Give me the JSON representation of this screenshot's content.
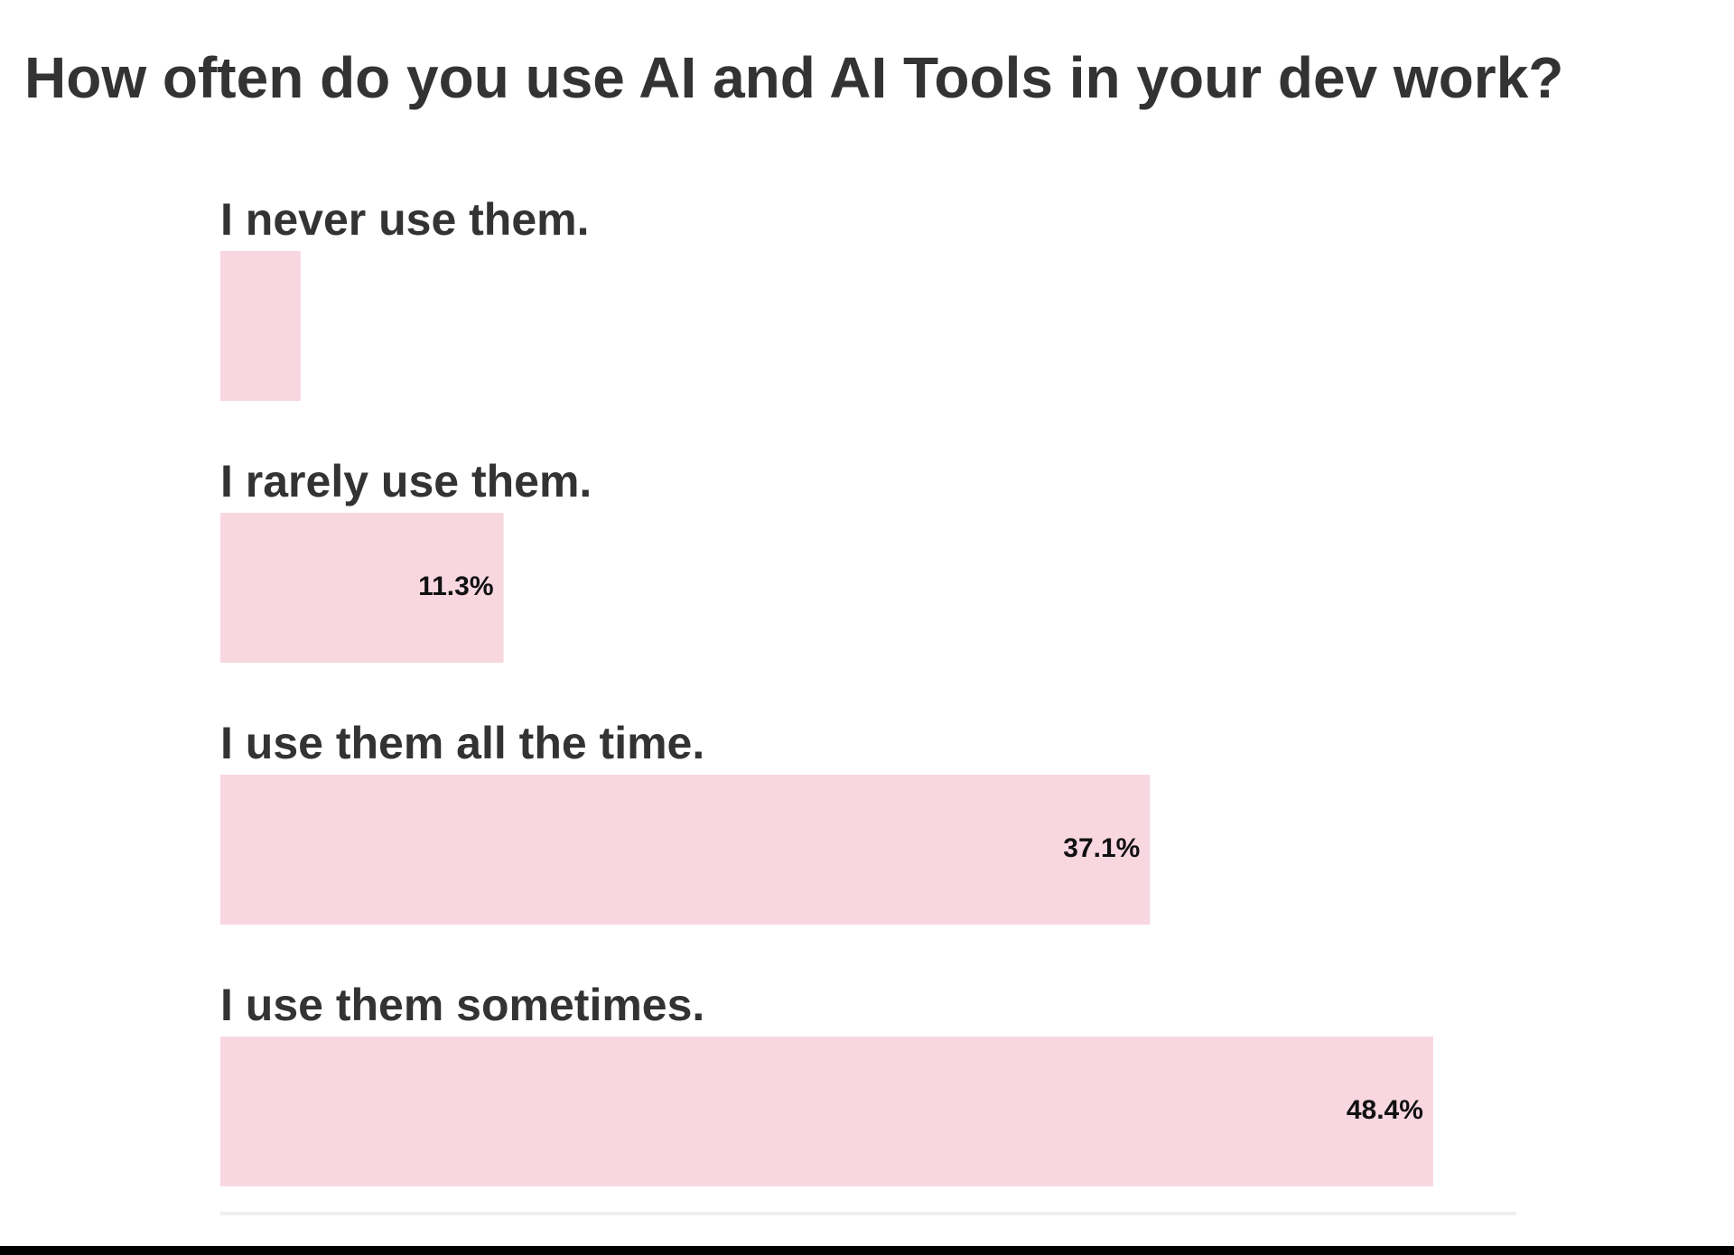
{
  "chart_data": {
    "type": "bar",
    "orientation": "horizontal",
    "title": "How often do you use AI and AI Tools in your dev work?",
    "categories": [
      "I never use them.",
      "I rarely use them.",
      "I use them all the time.",
      "I use them sometimes."
    ],
    "values": [
      3.2,
      11.3,
      37.1,
      48.4
    ],
    "value_labels": [
      "",
      "11.3%",
      "37.1%",
      "48.4%"
    ],
    "unit": "%",
    "xlim": [
      0,
      50
    ],
    "bar_color": "#f8d7e0",
    "axis_color": "#eeeeee",
    "grid": false,
    "legend": "none"
  }
}
